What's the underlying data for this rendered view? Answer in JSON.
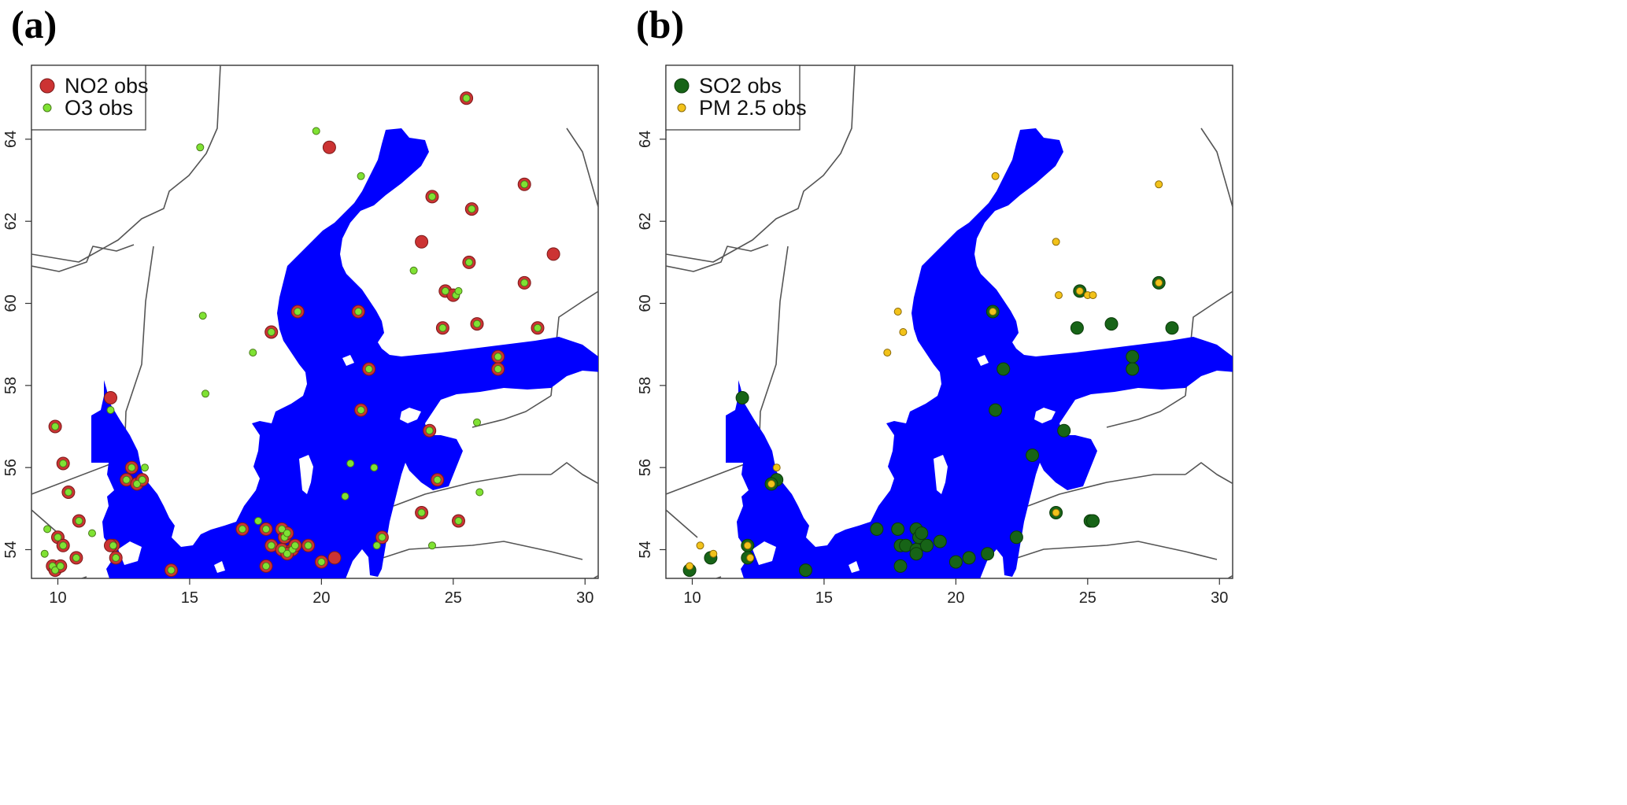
{
  "panels": [
    {
      "label": "(a)",
      "legend": [
        {
          "name": "NO2 obs",
          "color": "#cc3333"
        },
        {
          "name": "O3 obs",
          "color": "#7fe233"
        }
      ],
      "x_ticks": [
        "10",
        "15",
        "20",
        "25",
        "30"
      ],
      "y_ticks": [
        "54",
        "56",
        "58",
        "60",
        "62",
        "64"
      ]
    },
    {
      "label": "(b)",
      "legend": [
        {
          "name": "SO2 obs",
          "color": "#176417"
        },
        {
          "name": "PM 2.5 obs",
          "color": "#f2c21a"
        }
      ],
      "x_ticks": [
        "10",
        "15",
        "20",
        "25",
        "30"
      ],
      "y_ticks": [
        "54",
        "56",
        "58",
        "60",
        "62",
        "64"
      ]
    }
  ],
  "colors": {
    "sea": "#0000ff",
    "border": "#555555",
    "no2": "#cc3333",
    "o3": "#7fe233",
    "so2": "#176417",
    "pm25": "#f2c21a"
  },
  "extent": {
    "lon": [
      9.0,
      30.5
    ],
    "lat": [
      53.3,
      65.8
    ]
  },
  "stations": {
    "no2": [
      [
        25.5,
        65.0
      ],
      [
        20.3,
        63.8
      ],
      [
        24.2,
        62.6
      ],
      [
        25.7,
        62.3
      ],
      [
        27.7,
        62.9
      ],
      [
        23.8,
        61.5
      ],
      [
        28.8,
        61.2
      ],
      [
        25.6,
        61.0
      ],
      [
        27.7,
        60.5
      ],
      [
        24.7,
        60.3
      ],
      [
        25.0,
        60.2
      ],
      [
        19.1,
        59.8
      ],
      [
        21.4,
        59.8
      ],
      [
        24.6,
        59.4
      ],
      [
        25.9,
        59.5
      ],
      [
        28.2,
        59.4
      ],
      [
        18.1,
        59.3
      ],
      [
        21.8,
        58.4
      ],
      [
        26.7,
        58.7
      ],
      [
        26.7,
        58.4
      ],
      [
        12.0,
        57.7
      ],
      [
        21.5,
        57.4
      ],
      [
        24.1,
        56.9
      ],
      [
        9.9,
        57.0
      ],
      [
        10.2,
        56.1
      ],
      [
        12.6,
        55.7
      ],
      [
        13.0,
        55.6
      ],
      [
        13.2,
        55.7
      ],
      [
        12.8,
        56.0
      ],
      [
        10.4,
        55.4
      ],
      [
        24.4,
        55.7
      ],
      [
        10.8,
        54.7
      ],
      [
        12.1,
        54.1
      ],
      [
        12.2,
        53.8
      ],
      [
        10.0,
        54.3
      ],
      [
        10.2,
        54.1
      ],
      [
        10.7,
        53.8
      ],
      [
        9.8,
        53.6
      ],
      [
        9.9,
        53.5
      ],
      [
        10.1,
        53.6
      ],
      [
        14.3,
        53.5
      ],
      [
        17.0,
        54.5
      ],
      [
        17.9,
        54.5
      ],
      [
        18.5,
        54.5
      ],
      [
        18.6,
        54.3
      ],
      [
        18.7,
        54.4
      ],
      [
        18.1,
        54.1
      ],
      [
        18.5,
        54.0
      ],
      [
        18.9,
        54.0
      ],
      [
        19.5,
        54.1
      ],
      [
        19.0,
        54.1
      ],
      [
        17.9,
        53.6
      ],
      [
        18.7,
        53.9
      ],
      [
        20.0,
        53.7
      ],
      [
        20.5,
        53.8
      ],
      [
        22.3,
        54.3
      ],
      [
        23.8,
        54.9
      ],
      [
        25.2,
        54.7
      ],
      [
        12.0,
        54.1
      ]
    ],
    "o3": [
      [
        25.5,
        65.0
      ],
      [
        19.8,
        64.2
      ],
      [
        15.4,
        63.8
      ],
      [
        21.5,
        63.1
      ],
      [
        24.2,
        62.6
      ],
      [
        25.7,
        62.3
      ],
      [
        27.7,
        62.9
      ],
      [
        23.5,
        60.8
      ],
      [
        25.6,
        61.0
      ],
      [
        27.7,
        60.5
      ],
      [
        24.7,
        60.3
      ],
      [
        25.1,
        60.2
      ],
      [
        25.2,
        60.3
      ],
      [
        15.5,
        59.7
      ],
      [
        19.1,
        59.8
      ],
      [
        21.4,
        59.8
      ],
      [
        24.6,
        59.4
      ],
      [
        25.9,
        59.5
      ],
      [
        28.2,
        59.4
      ],
      [
        18.1,
        59.3
      ],
      [
        17.4,
        58.8
      ],
      [
        21.8,
        58.4
      ],
      [
        26.7,
        58.7
      ],
      [
        26.7,
        58.4
      ],
      [
        15.6,
        57.8
      ],
      [
        12.0,
        57.4
      ],
      [
        21.5,
        57.4
      ],
      [
        24.1,
        56.9
      ],
      [
        25.9,
        57.1
      ],
      [
        9.9,
        57.0
      ],
      [
        10.2,
        56.1
      ],
      [
        12.6,
        55.7
      ],
      [
        13.0,
        55.6
      ],
      [
        13.2,
        55.7
      ],
      [
        12.8,
        56.0
      ],
      [
        13.3,
        56.0
      ],
      [
        10.4,
        55.4
      ],
      [
        21.1,
        56.1
      ],
      [
        22.0,
        56.0
      ],
      [
        24.4,
        55.7
      ],
      [
        26.0,
        55.4
      ],
      [
        20.9,
        55.3
      ],
      [
        10.8,
        54.7
      ],
      [
        11.3,
        54.4
      ],
      [
        12.1,
        54.1
      ],
      [
        12.2,
        53.8
      ],
      [
        10.0,
        54.3
      ],
      [
        10.2,
        54.1
      ],
      [
        10.7,
        53.8
      ],
      [
        9.6,
        54.5
      ],
      [
        9.8,
        53.6
      ],
      [
        9.9,
        53.5
      ],
      [
        10.1,
        53.6
      ],
      [
        9.5,
        53.9
      ],
      [
        14.3,
        53.5
      ],
      [
        17.0,
        54.5
      ],
      [
        17.6,
        54.7
      ],
      [
        17.9,
        54.5
      ],
      [
        18.5,
        54.5
      ],
      [
        18.6,
        54.3
      ],
      [
        18.7,
        54.4
      ],
      [
        18.1,
        54.1
      ],
      [
        18.5,
        54.0
      ],
      [
        18.9,
        54.0
      ],
      [
        19.5,
        54.1
      ],
      [
        19.0,
        54.1
      ],
      [
        17.9,
        53.6
      ],
      [
        18.7,
        53.9
      ],
      [
        20.0,
        53.7
      ],
      [
        22.3,
        54.3
      ],
      [
        22.1,
        54.1
      ],
      [
        23.8,
        54.9
      ],
      [
        25.2,
        54.7
      ],
      [
        24.2,
        54.1
      ]
    ],
    "so2": [
      [
        21.4,
        59.8
      ],
      [
        24.7,
        60.3
      ],
      [
        27.7,
        60.5
      ],
      [
        24.6,
        59.4
      ],
      [
        25.9,
        59.5
      ],
      [
        28.2,
        59.4
      ],
      [
        21.8,
        58.4
      ],
      [
        26.7,
        58.7
      ],
      [
        26.7,
        58.4
      ],
      [
        11.9,
        57.7
      ],
      [
        21.5,
        57.4
      ],
      [
        24.1,
        56.9
      ],
      [
        22.9,
        56.3
      ],
      [
        13.2,
        55.7
      ],
      [
        13.0,
        55.6
      ],
      [
        23.8,
        54.9
      ],
      [
        25.1,
        54.7
      ],
      [
        25.2,
        54.7
      ],
      [
        17.0,
        54.5
      ],
      [
        17.8,
        54.5
      ],
      [
        18.5,
        54.5
      ],
      [
        18.6,
        54.3
      ],
      [
        18.7,
        54.4
      ],
      [
        17.9,
        54.1
      ],
      [
        18.1,
        54.1
      ],
      [
        18.5,
        54.0
      ],
      [
        18.9,
        54.1
      ],
      [
        19.4,
        54.2
      ],
      [
        17.9,
        53.6
      ],
      [
        18.5,
        53.9
      ],
      [
        20.0,
        53.7
      ],
      [
        20.5,
        53.8
      ],
      [
        21.2,
        53.9
      ],
      [
        22.3,
        54.3
      ],
      [
        12.1,
        54.1
      ],
      [
        12.1,
        53.8
      ],
      [
        10.7,
        53.8
      ],
      [
        9.9,
        53.5
      ],
      [
        14.3,
        53.5
      ]
    ],
    "pm25": [
      [
        21.5,
        63.1
      ],
      [
        27.7,
        62.9
      ],
      [
        23.8,
        61.5
      ],
      [
        23.9,
        60.2
      ],
      [
        24.7,
        60.3
      ],
      [
        25.0,
        60.2
      ],
      [
        25.2,
        60.2
      ],
      [
        27.7,
        60.5
      ],
      [
        21.4,
        59.8
      ],
      [
        17.8,
        59.8
      ],
      [
        18.0,
        59.3
      ],
      [
        17.4,
        58.8
      ],
      [
        13.2,
        56.0
      ],
      [
        13.0,
        55.6
      ],
      [
        12.1,
        54.1
      ],
      [
        12.2,
        53.8
      ],
      [
        10.3,
        54.1
      ],
      [
        9.9,
        53.6
      ],
      [
        10.8,
        53.9
      ],
      [
        23.8,
        54.9
      ]
    ]
  }
}
